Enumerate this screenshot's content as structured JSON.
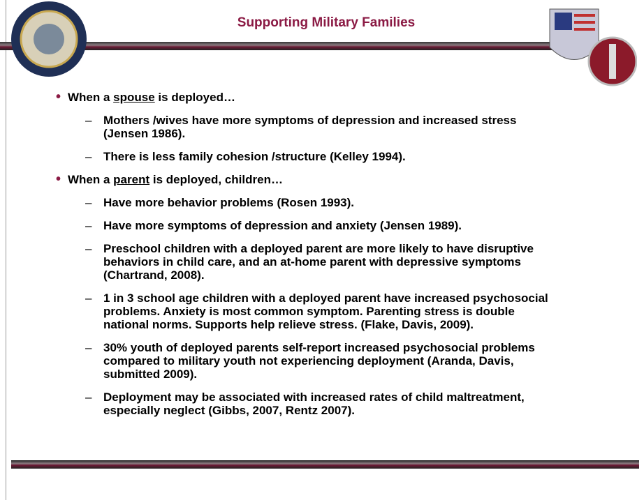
{
  "header": {
    "title": "Supporting Military Families"
  },
  "bullets": [
    {
      "pre": "When a ",
      "em": "spouse",
      "post": " is deployed…",
      "items": [
        "Mothers /wives have more symptoms of depression and increased stress (Jensen 1986).",
        "There is less family cohesion /structure (Kelley 1994)."
      ]
    },
    {
      "pre": "When a ",
      "em": "parent",
      "post": " is deployed, children…",
      "items": [
        "Have more behavior problems (Rosen 1993).",
        "Have more symptoms of depression and anxiety (Jensen 1989).",
        "Preschool children with a deployed parent are more likely to have disruptive behaviors in child care, and an at-home parent with depressive symptoms (Chartrand, 2008).",
        "1 in 3 school age children with a deployed parent have increased psychosocial problems. Anxiety is most common symptom.  Parenting stress is double national norms. Supports help relieve stress. (Flake, Davis, 2009).",
        "30% youth of deployed parents self-report increased psychosocial problems compared to military youth not experiencing deployment (Aranda, Davis, submitted 2009).",
        "Deployment may be associated with increased rates of child maltreatment, especially neglect (Gibbs, 2007, Rentz 2007)."
      ]
    }
  ]
}
